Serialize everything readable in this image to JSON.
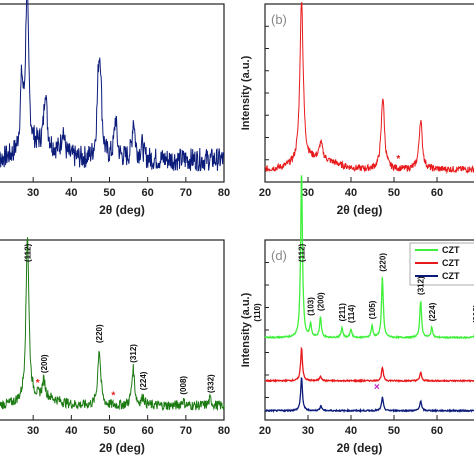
{
  "chart_data": [
    {
      "type": "line",
      "panel_label": "",
      "xlabel": "2θ (deg)",
      "ylabel": "",
      "xlim": [
        20,
        80
      ],
      "xticks": [
        "30",
        "40",
        "50",
        "60",
        "70",
        "80"
      ],
      "color": "#0b1b7a",
      "peaks": [
        {
          "x": 27.0,
          "y": 0.4
        },
        {
          "x": 28.4,
          "y": 1.0
        },
        {
          "x": 33.2,
          "y": 0.35
        },
        {
          "x": 37.8,
          "y": 0.15
        },
        {
          "x": 47.1,
          "y": 0.38
        },
        {
          "x": 47.6,
          "y": 0.44
        },
        {
          "x": 51.6,
          "y": 0.24
        },
        {
          "x": 56.3,
          "y": 0.24
        },
        {
          "x": 58.5,
          "y": 0.08
        }
      ],
      "annotations": []
    },
    {
      "type": "line",
      "panel_label": "(b)",
      "xlabel": "2θ (deg)",
      "ylabel": "Intensity (a.u.)",
      "xlim": [
        20,
        70
      ],
      "xticks": [
        "20",
        "30",
        "40",
        "50",
        "60",
        "70"
      ],
      "color": "#e8191b",
      "peaks": [
        {
          "x": 28.5,
          "y": 1.0
        },
        {
          "x": 33.0,
          "y": 0.1
        },
        {
          "x": 47.4,
          "y": 0.44
        },
        {
          "x": 56.2,
          "y": 0.3
        }
      ],
      "annotations": [
        {
          "text": "*",
          "x": 51.0
        }
      ]
    },
    {
      "type": "line",
      "panel_label": "",
      "xlabel": "2θ (deg)",
      "ylabel": "",
      "xlim": [
        20,
        80
      ],
      "xticks": [
        "30",
        "40",
        "50",
        "60",
        "70",
        "80"
      ],
      "color": "#1b7a12",
      "peaks": [
        {
          "x": 28.5,
          "y": 1.0
        },
        {
          "x": 32.8,
          "y": 0.1
        },
        {
          "x": 47.3,
          "y": 0.34
        },
        {
          "x": 56.2,
          "y": 0.22
        },
        {
          "x": 58.8,
          "y": 0.05
        },
        {
          "x": 69.2,
          "y": 0.03
        },
        {
          "x": 76.4,
          "y": 0.04
        }
      ],
      "annotations": [
        {
          "text": "(112)",
          "x": 28.5
        },
        {
          "text": "(200)",
          "x": 32.8
        },
        {
          "text": "(220)",
          "x": 47.3
        },
        {
          "text": "(312)",
          "x": 56.2
        },
        {
          "text": "(224)",
          "x": 58.8
        },
        {
          "text": "(008)",
          "x": 69.2
        },
        {
          "text": "(332)",
          "x": 76.4
        },
        {
          "text": "*",
          "x": 31.2
        },
        {
          "text": "*",
          "x": 51.0
        }
      ]
    },
    {
      "type": "line",
      "panel_label": "(d)",
      "xlabel": "2θ (deg)",
      "ylabel": "Intensity (a.u.)",
      "xlim": [
        20,
        70
      ],
      "xticks": [
        "20",
        "30",
        "40",
        "50",
        "60",
        "70"
      ],
      "series": [
        {
          "name": "CZT",
          "color": "#3ff03a",
          "offset": 0.46,
          "peaks": [
            {
              "x": 18.2,
              "y": 0.06
            },
            {
              "x": 28.5,
              "y": 1.0
            },
            {
              "x": 30.6,
              "y": 0.08
            },
            {
              "x": 32.9,
              "y": 0.12
            },
            {
              "x": 37.9,
              "y": 0.06
            },
            {
              "x": 40.0,
              "y": 0.05
            },
            {
              "x": 44.9,
              "y": 0.07
            },
            {
              "x": 47.3,
              "y": 0.36
            },
            {
              "x": 56.2,
              "y": 0.22
            },
            {
              "x": 58.8,
              "y": 0.06
            },
            {
              "x": 69.1,
              "y": 0.05
            }
          ]
        },
        {
          "name": "CZT",
          "color": "#e8191b",
          "offset": 0.2,
          "peaks": [
            {
              "x": 28.5,
              "y": 0.2
            },
            {
              "x": 32.9,
              "y": 0.03
            },
            {
              "x": 47.3,
              "y": 0.08
            },
            {
              "x": 56.2,
              "y": 0.05
            }
          ]
        },
        {
          "name": "CZT",
          "color": "#0b1b7a",
          "offset": 0.02,
          "peaks": [
            {
              "x": 28.5,
              "y": 0.2
            },
            {
              "x": 33.0,
              "y": 0.03
            },
            {
              "x": 47.3,
              "y": 0.08
            },
            {
              "x": 56.2,
              "y": 0.06
            }
          ]
        }
      ],
      "annotations": [
        {
          "text": "(110)",
          "x": 18.2
        },
        {
          "text": "(112)",
          "x": 28.5
        },
        {
          "text": "(103)",
          "x": 30.6
        },
        {
          "text": "(200)",
          "x": 32.9
        },
        {
          "text": "(211)",
          "x": 37.9
        },
        {
          "text": "(114)",
          "x": 40.0
        },
        {
          "text": "(105)",
          "x": 44.9
        },
        {
          "text": "(220)",
          "x": 47.3
        },
        {
          "text": "(312)",
          "x": 56.2
        },
        {
          "text": "(224)",
          "x": 58.8
        },
        {
          "text": "(008)",
          "x": 69.1
        },
        {
          "text": "×",
          "x": 46.0
        }
      ]
    }
  ]
}
